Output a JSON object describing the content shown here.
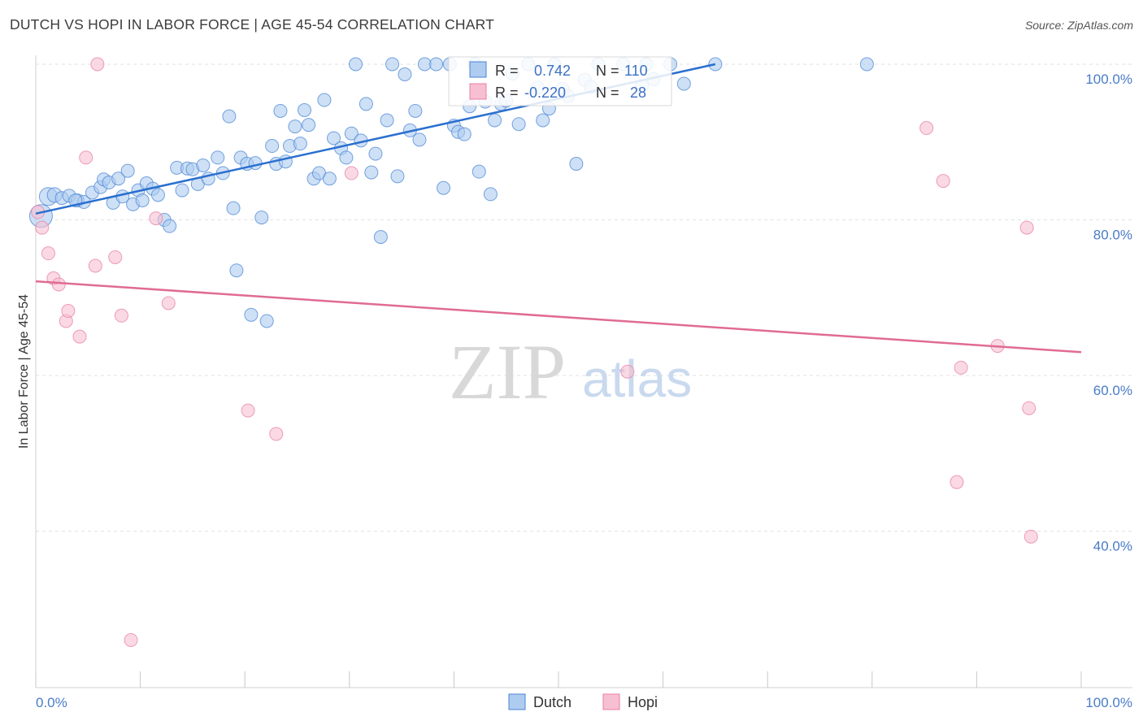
{
  "title": "DUTCH VS HOPI IN LABOR FORCE | AGE 45-54 CORRELATION CHART",
  "source": "Source: ZipAtlas.com",
  "watermark": {
    "zip": "ZIP",
    "atlas": "atlas"
  },
  "legend": {
    "series1": "Dutch",
    "series2": "Hopi"
  },
  "stats": {
    "r_label": "R =",
    "n_label": "N =",
    "dutch": {
      "r": "0.742",
      "n": "110"
    },
    "hopi": {
      "r": "-0.220",
      "n": "28"
    }
  },
  "colors": {
    "dutch_fill": "#aecbf0",
    "dutch_stroke": "#4a86d4",
    "dutch_line": "#2a6fcf",
    "hopi_fill": "#f7bfd2",
    "hopi_stroke": "#e87fa3",
    "hopi_line": "#e06b95",
    "tick": "#4a7cc7"
  },
  "chart_data": {
    "type": "scatter",
    "title": "DUTCH VS HOPI IN LABOR FORCE | AGE 45-54 CORRELATION CHART",
    "xlabel": "",
    "ylabel": "In Labor Force | Age 45-54",
    "xlim": [
      0,
      100
    ],
    "ylim": [
      21,
      102
    ],
    "x_tick_labels": [
      "0.0%",
      "100.0%"
    ],
    "y_ticks": [
      100,
      80,
      60,
      40
    ],
    "y_tick_labels": [
      "100.0%",
      "80.0%",
      "60.0%",
      "40.0%"
    ],
    "grid": true,
    "legend_position": "bottom-center",
    "series": [
      {
        "name": "Dutch",
        "trendline": {
          "x": [
            0,
            65
          ],
          "y": [
            80.8,
            100.0
          ]
        },
        "points": [
          [
            0.5,
            80.5,
            14
          ],
          [
            1.2,
            83.0,
            11
          ],
          [
            1.8,
            83.2,
            9
          ],
          [
            2.5,
            82.8,
            8
          ],
          [
            3.2,
            83.1,
            8
          ],
          [
            4.0,
            82.5,
            8
          ],
          [
            4.6,
            82.3,
            8
          ],
          [
            5.4,
            83.5,
            8
          ],
          [
            6.2,
            84.2,
            8
          ],
          [
            6.5,
            85.2,
            8
          ],
          [
            7.0,
            84.8,
            8
          ],
          [
            7.4,
            82.2,
            8
          ],
          [
            7.9,
            85.3,
            8
          ],
          [
            8.3,
            83.0,
            8
          ],
          [
            8.8,
            86.3,
            8
          ],
          [
            9.3,
            82.0,
            8
          ],
          [
            9.8,
            83.8,
            8
          ],
          [
            10.2,
            82.5,
            8
          ],
          [
            10.6,
            84.7,
            8
          ],
          [
            11.2,
            84.0,
            8
          ],
          [
            11.7,
            83.2,
            8
          ],
          [
            12.3,
            80.0,
            8
          ],
          [
            12.8,
            79.2,
            8
          ],
          [
            13.5,
            86.7,
            8
          ],
          [
            14.0,
            83.8,
            8
          ],
          [
            14.5,
            86.6,
            8
          ],
          [
            15.0,
            86.5,
            8
          ],
          [
            15.5,
            84.6,
            8
          ],
          [
            16.0,
            87.0,
            8
          ],
          [
            16.5,
            85.3,
            8
          ],
          [
            17.4,
            88.0,
            8
          ],
          [
            17.9,
            86.0,
            8
          ],
          [
            18.5,
            93.3,
            8
          ],
          [
            18.9,
            81.5,
            8
          ],
          [
            19.2,
            73.5,
            8
          ],
          [
            19.6,
            88.0,
            8
          ],
          [
            20.2,
            87.2,
            8
          ],
          [
            20.6,
            67.8,
            8
          ],
          [
            21.0,
            87.3,
            8
          ],
          [
            21.6,
            80.3,
            8
          ],
          [
            22.1,
            67.0,
            8
          ],
          [
            22.6,
            89.5,
            8
          ],
          [
            23.0,
            87.2,
            8
          ],
          [
            23.4,
            94.0,
            8
          ],
          [
            23.9,
            87.5,
            8
          ],
          [
            24.3,
            89.5,
            8
          ],
          [
            24.8,
            92.0,
            8
          ],
          [
            25.3,
            89.8,
            8
          ],
          [
            25.7,
            94.1,
            8
          ],
          [
            26.1,
            92.2,
            8
          ],
          [
            26.6,
            85.3,
            8
          ],
          [
            27.1,
            86.0,
            8
          ],
          [
            27.6,
            95.4,
            8
          ],
          [
            28.1,
            85.3,
            8
          ],
          [
            28.5,
            90.5,
            8
          ],
          [
            29.2,
            89.2,
            8
          ],
          [
            29.7,
            88.0,
            8
          ],
          [
            30.2,
            91.1,
            8
          ],
          [
            30.6,
            100.0,
            8
          ],
          [
            31.1,
            90.2,
            8
          ],
          [
            31.6,
            94.9,
            8
          ],
          [
            32.1,
            86.1,
            8
          ],
          [
            32.5,
            88.5,
            8
          ],
          [
            33.0,
            77.8,
            8
          ],
          [
            33.6,
            92.8,
            8
          ],
          [
            34.1,
            100.0,
            8
          ],
          [
            34.6,
            85.6,
            8
          ],
          [
            35.3,
            98.7,
            8
          ],
          [
            35.8,
            91.5,
            8
          ],
          [
            36.3,
            94.0,
            8
          ],
          [
            36.7,
            90.3,
            8
          ],
          [
            37.2,
            100.0,
            8
          ],
          [
            38.3,
            100.0,
            8
          ],
          [
            39.0,
            84.1,
            8
          ],
          [
            39.6,
            100.0,
            8
          ],
          [
            40.0,
            92.1,
            8
          ],
          [
            40.4,
            91.3,
            8
          ],
          [
            41.0,
            91.0,
            8
          ],
          [
            41.5,
            94.6,
            8
          ],
          [
            42.0,
            100.0,
            8
          ],
          [
            42.4,
            86.2,
            8
          ],
          [
            43.0,
            95.2,
            8
          ],
          [
            43.5,
            83.3,
            8
          ],
          [
            43.9,
            92.8,
            8
          ],
          [
            44.5,
            94.9,
            8
          ],
          [
            45.0,
            95.3,
            8
          ],
          [
            45.6,
            98.8,
            8
          ],
          [
            46.2,
            92.3,
            8
          ],
          [
            47.1,
            100.0,
            8
          ],
          [
            48.0,
            97.0,
            8
          ],
          [
            48.5,
            92.8,
            8
          ],
          [
            49.1,
            94.3,
            8
          ],
          [
            49.6,
            100.0,
            8
          ],
          [
            50.4,
            96.8,
            8
          ],
          [
            50.9,
            95.9,
            8
          ],
          [
            51.7,
            87.2,
            8
          ],
          [
            52.5,
            98.0,
            8
          ],
          [
            53.1,
            97.1,
            8
          ],
          [
            53.8,
            100.0,
            8
          ],
          [
            56.2,
            100.0,
            8
          ],
          [
            58.0,
            97.2,
            8
          ],
          [
            58.4,
            100.0,
            8
          ],
          [
            59.1,
            98.1,
            8
          ],
          [
            60.7,
            100.0,
            8
          ],
          [
            62.0,
            97.5,
            8
          ],
          [
            65.0,
            100.0,
            8
          ],
          [
            79.5,
            100.0,
            8
          ],
          [
            3.8,
            82.5,
            8
          ]
        ]
      },
      {
        "name": "Hopi",
        "trendline": {
          "x": [
            0,
            100
          ],
          "y": [
            72.1,
            63.0
          ]
        },
        "points": [
          [
            0.2,
            81.0,
            8
          ],
          [
            0.6,
            79.0,
            8
          ],
          [
            1.2,
            75.7,
            8
          ],
          [
            1.7,
            72.5,
            8
          ],
          [
            2.2,
            71.7,
            8
          ],
          [
            2.9,
            67.0,
            8
          ],
          [
            3.1,
            68.3,
            8
          ],
          [
            4.2,
            65.0,
            8
          ],
          [
            4.8,
            88.0,
            8
          ],
          [
            5.7,
            74.1,
            8
          ],
          [
            5.9,
            100.0,
            8
          ],
          [
            7.6,
            75.2,
            8
          ],
          [
            8.2,
            67.7,
            8
          ],
          [
            9.1,
            26.0,
            8
          ],
          [
            11.5,
            80.2,
            8
          ],
          [
            12.7,
            69.3,
            8
          ],
          [
            20.3,
            55.5,
            8
          ],
          [
            23.0,
            52.5,
            8
          ],
          [
            30.2,
            86.0,
            8
          ],
          [
            56.6,
            60.5,
            8
          ],
          [
            85.2,
            91.8,
            8
          ],
          [
            86.8,
            85.0,
            8
          ],
          [
            88.1,
            46.3,
            8
          ],
          [
            88.5,
            61.0,
            8
          ],
          [
            92.0,
            63.8,
            8
          ],
          [
            94.8,
            79.0,
            8
          ],
          [
            95.0,
            55.8,
            8
          ],
          [
            95.2,
            39.3,
            8
          ]
        ]
      }
    ]
  }
}
